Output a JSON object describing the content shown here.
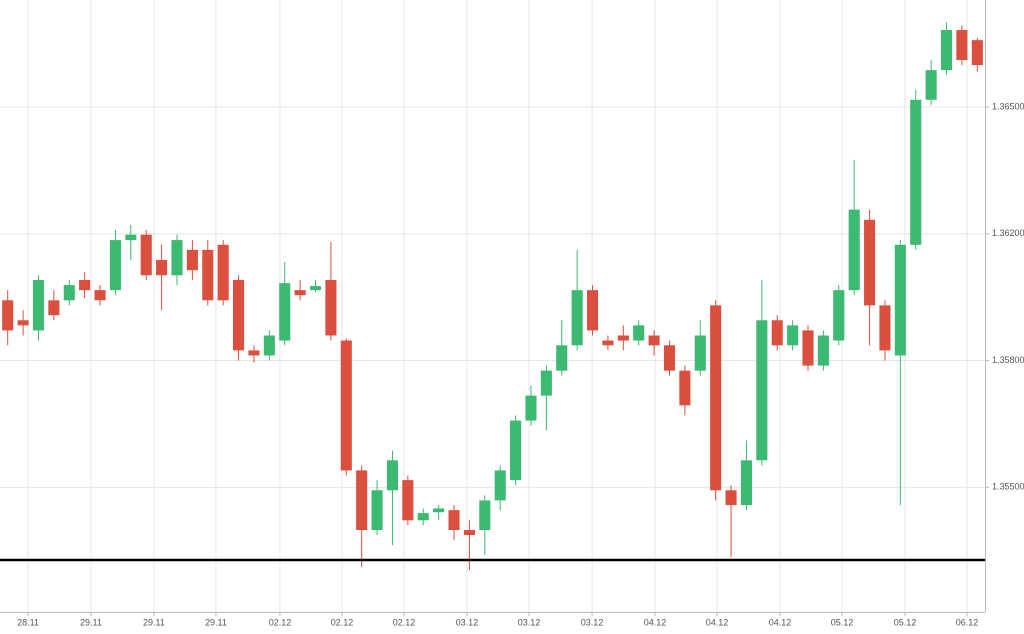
{
  "chart_data": {
    "type": "candlestick",
    "up_color": "#3dba72",
    "down_color": "#db4f3f",
    "grid": true,
    "open": [
      1.3599,
      1.35927,
      1.35895,
      1.3599,
      1.3599,
      1.36054,
      1.36022,
      1.36022,
      1.3618,
      1.36197,
      1.36117,
      1.36069,
      1.36149,
      1.36149,
      1.36165,
      1.36054,
      1.35832,
      1.35816,
      1.35863,
      1.36022,
      1.36022,
      1.36054,
      1.35863,
      1.3554,
      1.35399,
      1.35493,
      1.35517,
      1.35422,
      1.35441,
      1.35446,
      1.35399,
      1.35399,
      1.35469,
      1.35517,
      1.35658,
      1.35717,
      1.35776,
      1.35848,
      1.36022,
      1.35863,
      1.35879,
      1.35863,
      1.35879,
      1.35848,
      1.35776,
      1.35776,
      1.35974,
      1.35493,
      1.35458,
      1.35564,
      1.35927,
      1.35848,
      1.35895,
      1.35788,
      1.35863,
      1.36022,
      1.36233,
      1.35974,
      1.35816,
      1.36165,
      1.36517,
      1.36587,
      1.36682,
      1.36658
    ],
    "high": [
      1.36022,
      1.35959,
      1.36069,
      1.36022,
      1.36054,
      1.36079,
      1.36038,
      1.36209,
      1.36221,
      1.36209,
      1.36165,
      1.36197,
      1.3618,
      1.3618,
      1.3618,
      1.36069,
      1.35848,
      1.35895,
      1.36111,
      1.36054,
      1.36054,
      1.36174,
      1.3587,
      1.35552,
      1.35517,
      1.35587,
      1.35528,
      1.3545,
      1.35458,
      1.35458,
      1.35422,
      1.35481,
      1.35552,
      1.3567,
      1.35741,
      1.35788,
      1.35927,
      1.36149,
      1.36038,
      1.35879,
      1.35911,
      1.35927,
      1.35895,
      1.35863,
      1.35788,
      1.35927,
      1.3599,
      1.35505,
      1.35611,
      1.36054,
      1.35943,
      1.35927,
      1.35911,
      1.35895,
      1.36038,
      1.36375,
      1.36257,
      1.3599,
      1.36181,
      1.3654,
      1.36611,
      1.367,
      1.36693,
      1.36663
    ],
    "low": [
      1.35848,
      1.35879,
      1.35863,
      1.35927,
      1.35974,
      1.35997,
      1.35974,
      1.36006,
      1.36117,
      1.36054,
      1.35959,
      1.36038,
      1.36054,
      1.35974,
      1.35974,
      1.358,
      1.35795,
      1.358,
      1.35848,
      1.3599,
      1.36016,
      1.35863,
      1.35528,
      1.35311,
      1.35387,
      1.35363,
      1.3541,
      1.3541,
      1.35422,
      1.35375,
      1.35304,
      1.3534,
      1.35446,
      1.35505,
      1.35646,
      1.35635,
      1.35764,
      1.35832,
      1.35879,
      1.35832,
      1.35832,
      1.35848,
      1.35816,
      1.35764,
      1.3567,
      1.35764,
      1.35469,
      1.35335,
      1.35446,
      1.35552,
      1.35832,
      1.35832,
      1.35776,
      1.35776,
      1.35848,
      1.36006,
      1.35848,
      1.358,
      1.35458,
      1.36149,
      1.36505,
      1.36576,
      1.36599,
      1.36583
    ],
    "close": [
      1.35895,
      1.35911,
      1.36054,
      1.35943,
      1.36038,
      1.36022,
      1.3599,
      1.3618,
      1.36197,
      1.36069,
      1.36069,
      1.3618,
      1.36085,
      1.3599,
      1.3599,
      1.35832,
      1.35816,
      1.35879,
      1.36044,
      1.36006,
      1.36035,
      1.35879,
      1.3554,
      1.35399,
      1.35493,
      1.35564,
      1.35422,
      1.35439,
      1.3545,
      1.35399,
      1.35387,
      1.35469,
      1.3554,
      1.35658,
      1.35717,
      1.35776,
      1.35848,
      1.36022,
      1.35895,
      1.35848,
      1.35863,
      1.35911,
      1.35848,
      1.35776,
      1.35694,
      1.35879,
      1.35493,
      1.35458,
      1.35564,
      1.35927,
      1.35848,
      1.35911,
      1.35788,
      1.35879,
      1.36022,
      1.36257,
      1.35974,
      1.35832,
      1.36165,
      1.36517,
      1.36587,
      1.36682,
      1.36611,
      1.36599
    ],
    "xlim": [
      -0.5,
      63.5
    ],
    "xticks": [
      {
        "value": 1.32,
        "label": "28.11"
      },
      {
        "value": 5.41,
        "label": "29.11"
      },
      {
        "value": 9.5,
        "label": "29.11"
      },
      {
        "value": 13.53,
        "label": "29.11"
      },
      {
        "value": 17.69,
        "label": "02.12"
      },
      {
        "value": 21.72,
        "label": "02.12"
      },
      {
        "value": 25.75,
        "label": "02.12"
      },
      {
        "value": 29.84,
        "label": "03.12"
      },
      {
        "value": 33.87,
        "label": "03.12"
      },
      {
        "value": 37.97,
        "label": "03.12"
      },
      {
        "value": 42.06,
        "label": "04.12"
      },
      {
        "value": 46.09,
        "label": "04.12"
      },
      {
        "value": 50.18,
        "label": "04.12"
      },
      {
        "value": 54.21,
        "label": "05.12"
      },
      {
        "value": 58.3,
        "label": "05.12"
      },
      {
        "value": 62.33,
        "label": "06.12"
      }
    ],
    "ylim": [
      1.35205,
      1.36753
    ],
    "yticks": [
      {
        "value": 1.355,
        "label": "1.35500"
      },
      {
        "value": 1.358,
        "label": "1.35800"
      },
      {
        "value": 1.362,
        "label": "1.36200"
      },
      {
        "value": 1.365,
        "label": "1.36500"
      }
    ],
    "hline": 1.35328
  }
}
